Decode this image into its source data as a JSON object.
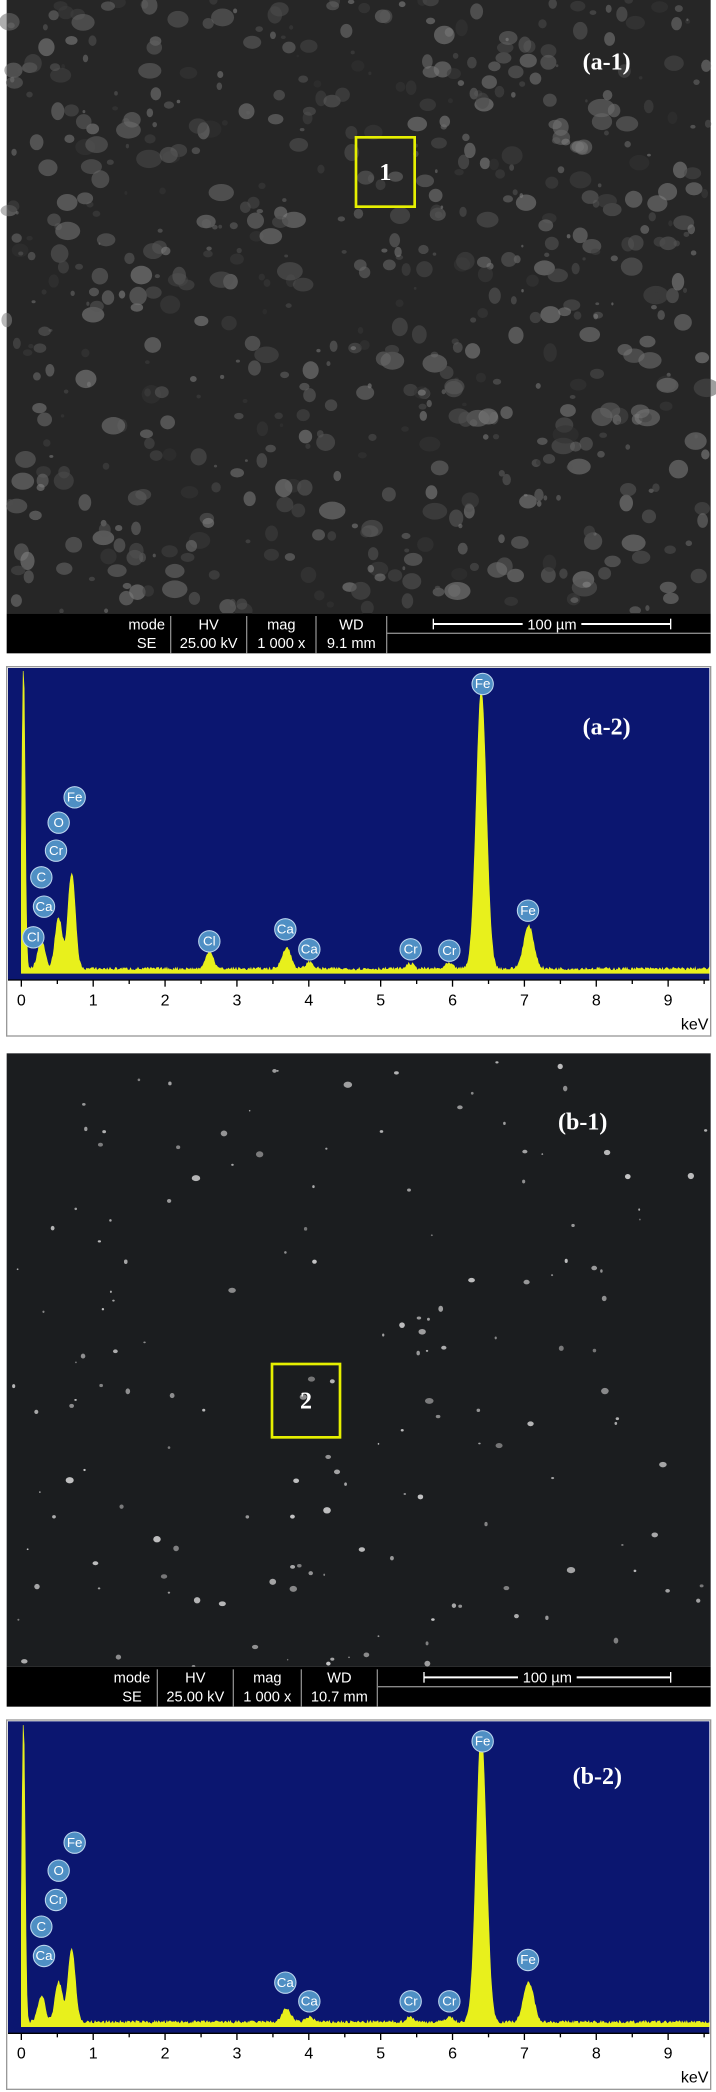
{
  "panels": [
    {
      "label": "(a-1)",
      "region": "1",
      "info": {
        "headers": [
          "mode",
          "HV",
          "mag",
          "WD"
        ],
        "values": [
          "SE",
          "25.00 kV",
          "1 000 x",
          "9.1 mm"
        ],
        "scale": "100 µm"
      }
    },
    {
      "label": "(a-2)",
      "xticks": [
        0,
        1,
        2,
        3,
        4,
        5,
        6,
        7,
        8,
        9
      ],
      "unit": "keV",
      "peaks": [
        "Fe",
        "Fe",
        "O",
        "Cr",
        "C",
        "Ca",
        "Cl",
        "Cl",
        "Ca",
        "Ca",
        "Cr",
        "Cr",
        "Fe"
      ]
    },
    {
      "label": "(b-1)",
      "region": "2",
      "info": {
        "headers": [
          "mode",
          "HV",
          "mag",
          "WD"
        ],
        "values": [
          "SE",
          "25.00 kV",
          "1 000 x",
          "10.7 mm"
        ],
        "scale": "100 µm"
      }
    },
    {
      "label": "(b-2)",
      "xticks": [
        0,
        1,
        2,
        3,
        4,
        5,
        6,
        7,
        8,
        9
      ],
      "unit": "keV",
      "peaks": [
        "Fe",
        "Fe",
        "O",
        "Cr",
        "C",
        "Ca",
        "Ca",
        "Ca",
        "Cr",
        "Cr",
        "Fe"
      ]
    }
  ]
}
